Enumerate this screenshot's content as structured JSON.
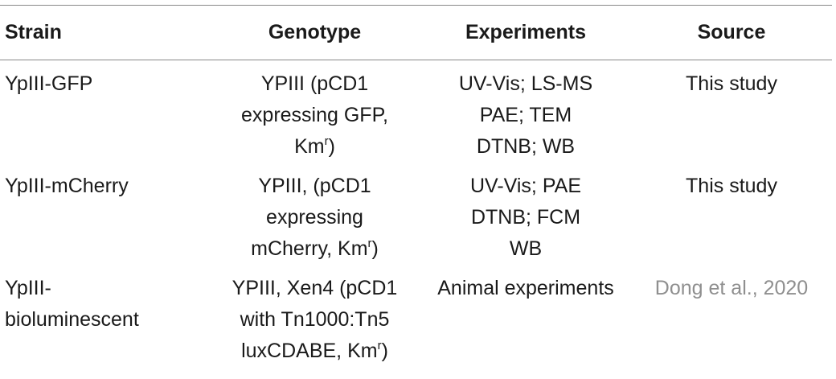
{
  "table": {
    "headers": {
      "strain": "Strain",
      "genotype": "Genotype",
      "experiments": "Experiments",
      "source": "Source"
    },
    "rows": [
      {
        "strain": [
          "YpIII-GFP"
        ],
        "genotype": [
          "YPIII (pCD1",
          "expressing GFP,",
          "Km"
        ],
        "genotype_sup": "r",
        "genotype_suffix": ")",
        "experiments": [
          "UV-Vis; LS-MS",
          "PAE; TEM",
          "DTNB; WB"
        ],
        "source": "This study"
      },
      {
        "strain": [
          "YpIII-mCherry"
        ],
        "genotype": [
          "YPIII, (pCD1",
          "expressing",
          "mCherry, Km"
        ],
        "genotype_sup": "r",
        "genotype_suffix": ")",
        "experiments": [
          "UV-Vis; PAE",
          "DTNB; FCM",
          "WB"
        ],
        "source": "This study"
      },
      {
        "strain": [
          "YpIII-",
          "bioluminescent"
        ],
        "genotype": [
          "YPIII, Xen4 (pCD1",
          "with Tn1000:Tn5",
          "luxCDABE, Km"
        ],
        "genotype_sup": "r",
        "genotype_suffix": ")",
        "experiments": [
          "Animal experiments"
        ],
        "source": "Dong et al., 2020"
      }
    ]
  },
  "colors": {
    "text": "#1a1a1a",
    "rule": "#888888",
    "citation_link": "#8f8f8f"
  }
}
